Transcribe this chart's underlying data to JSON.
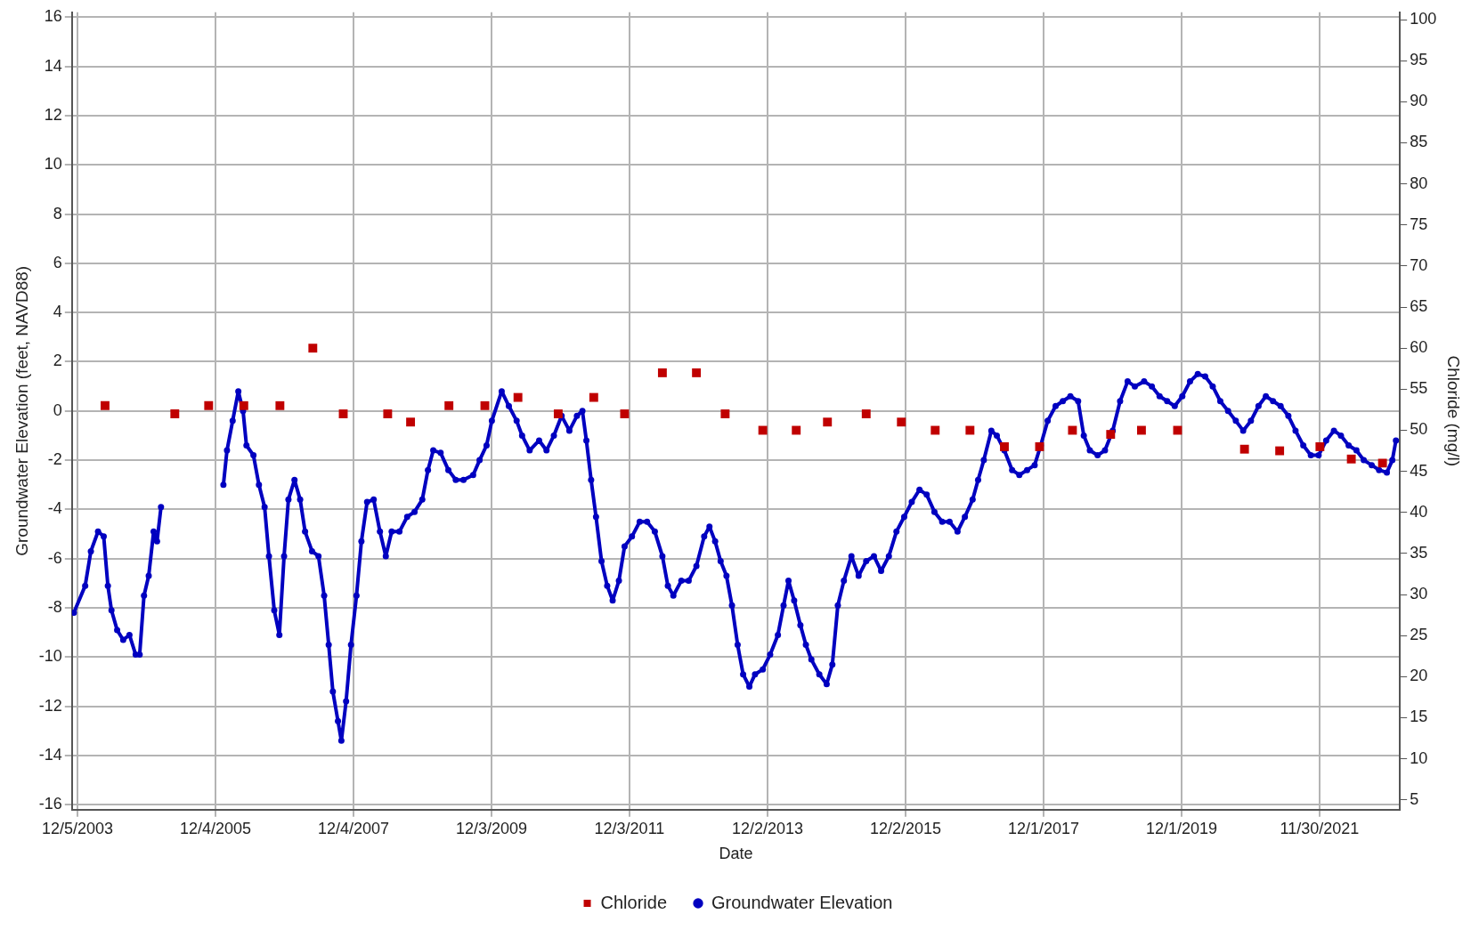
{
  "chart_data": {
    "type": "line",
    "xlabel": "Date",
    "ylabel": "Groundwater Elevation (feet, NAVD88)",
    "y2label": "Chloride (mg/l)",
    "xlim": [
      "2003-11-06",
      "2023-01-29"
    ],
    "xticks": [
      {
        "value": "2003-12-05",
        "label": "12/5/2003"
      },
      {
        "value": "2005-12-04",
        "label": "12/4/2005"
      },
      {
        "value": "2007-12-04",
        "label": "12/4/2007"
      },
      {
        "value": "2009-12-03",
        "label": "12/3/2009"
      },
      {
        "value": "2011-12-03",
        "label": "12/3/2011"
      },
      {
        "value": "2013-12-02",
        "label": "12/2/2013"
      },
      {
        "value": "2015-12-02",
        "label": "12/2/2015"
      },
      {
        "value": "2017-12-01",
        "label": "12/1/2017"
      },
      {
        "value": "2019-12-01",
        "label": "12/1/2019"
      },
      {
        "value": "2021-11-30",
        "label": "11/30/2021"
      }
    ],
    "ylim": [
      -16.2,
      16.2
    ],
    "yticks": [
      -16,
      -14,
      -12,
      -10,
      -8,
      -6,
      -4,
      -2,
      0,
      2,
      4,
      6,
      8,
      10,
      12,
      14,
      16
    ],
    "y2lim": [
      3.8,
      100.9
    ],
    "y2ticks": [
      5,
      10,
      15,
      20,
      25,
      30,
      35,
      40,
      45,
      50,
      55,
      60,
      65,
      70,
      75,
      80,
      85,
      90,
      95,
      100
    ],
    "grid": true,
    "legend": "bottom",
    "series": [
      {
        "name": "Groundwater Elevation",
        "type": "line",
        "marker": "circle",
        "color": "#0000c0",
        "x": [
          "2003-11-16",
          "2004-01-15",
          "2004-02-14",
          "2004-03-23",
          "2004-04-22",
          "2004-05-14",
          "2004-06-02",
          "2004-07-02",
          "2004-08-03",
          "2004-09-05",
          "2004-10-08",
          "2004-10-29",
          "2004-11-21",
          "2004-12-16",
          "2005-01-11",
          "2005-01-29",
          "2005-02-19",
          "2005-08-01",
          "2006-01-15",
          "2006-02-03",
          "2006-03-05",
          "2006-04-04",
          "2006-04-29",
          "2006-05-17",
          "2006-06-23",
          "2006-07-22",
          "2006-08-21",
          "2006-09-13",
          "2006-10-11",
          "2006-11-07",
          "2006-12-02",
          "2006-12-25",
          "2007-01-26",
          "2007-02-25",
          "2007-03-23",
          "2007-04-29",
          "2007-06-02",
          "2007-07-02",
          "2007-07-26",
          "2007-08-17",
          "2007-09-13",
          "2007-10-01",
          "2007-10-26",
          "2007-11-21",
          "2007-12-20",
          "2008-01-15",
          "2008-02-14",
          "2008-03-20",
          "2008-04-22",
          "2008-05-23",
          "2008-06-23",
          "2008-08-03",
          "2008-09-13",
          "2008-10-22",
          "2008-12-02",
          "2009-01-01",
          "2009-01-29",
          "2009-03-09",
          "2009-04-19",
          "2009-05-28",
          "2009-07-08",
          "2009-08-28",
          "2009-10-01",
          "2009-11-07",
          "2009-12-05",
          "2010-01-26",
          "2010-03-05",
          "2010-04-15",
          "2010-05-14",
          "2010-06-23",
          "2010-08-12",
          "2010-09-20",
          "2010-10-29",
          "2010-12-09",
          "2011-01-19",
          "2011-02-28",
          "2011-03-29",
          "2011-04-19",
          "2011-05-14",
          "2011-06-09",
          "2011-07-08",
          "2011-08-07",
          "2011-09-05",
          "2011-10-08",
          "2011-11-07",
          "2011-12-16",
          "2012-01-26",
          "2012-03-05",
          "2012-04-15",
          "2012-05-25",
          "2012-06-23",
          "2012-07-22",
          "2012-09-02",
          "2012-10-11",
          "2012-11-21",
          "2013-01-01",
          "2013-01-29",
          "2013-02-28",
          "2013-03-29",
          "2013-04-29",
          "2013-05-28",
          "2013-06-27",
          "2013-07-26",
          "2013-08-28",
          "2013-09-27",
          "2013-11-07",
          "2013-12-16",
          "2014-01-26",
          "2014-02-25",
          "2014-03-23",
          "2014-04-22",
          "2014-05-25",
          "2014-06-23",
          "2014-07-22",
          "2014-09-02",
          "2014-10-11",
          "2014-11-10",
          "2014-12-09",
          "2015-01-10",
          "2015-02-19",
          "2015-03-29",
          "2015-05-08",
          "2015-06-18",
          "2015-07-26",
          "2015-09-05",
          "2015-10-15",
          "2015-11-25",
          "2016-01-04",
          "2016-02-14",
          "2016-03-23",
          "2016-05-03",
          "2016-06-13",
          "2016-07-22",
          "2016-09-02",
          "2016-10-11",
          "2016-11-21",
          "2016-12-20",
          "2017-01-19",
          "2017-02-28",
          "2017-03-29",
          "2017-05-08",
          "2017-06-18",
          "2017-07-26",
          "2017-09-05",
          "2017-10-15",
          "2017-11-16",
          "2017-12-23",
          "2018-02-03",
          "2018-03-13",
          "2018-04-22",
          "2018-06-02",
          "2018-07-02",
          "2018-08-03",
          "2018-09-13",
          "2018-10-22",
          "2018-12-02",
          "2019-01-10",
          "2019-02-19",
          "2019-03-29",
          "2019-05-17",
          "2019-06-27",
          "2019-08-07",
          "2019-09-16",
          "2019-10-26",
          "2019-12-05",
          "2020-01-15",
          "2020-02-25",
          "2020-04-04",
          "2020-05-14",
          "2020-06-23",
          "2020-08-03",
          "2020-09-13",
          "2020-10-22",
          "2020-12-02",
          "2021-01-11",
          "2021-02-19",
          "2021-03-29",
          "2021-05-08",
          "2021-06-18",
          "2021-07-26",
          "2021-09-05",
          "2021-10-15",
          "2021-11-25",
          "2022-01-04",
          "2022-02-14",
          "2022-03-23",
          "2022-05-03",
          "2022-06-13",
          "2022-07-22",
          "2022-09-02",
          "2022-10-11",
          "2022-11-21",
          "2022-12-20",
          "2023-01-08"
        ],
        "values": [
          -8.2,
          -7.1,
          -5.7,
          -4.9,
          -5.1,
          -7.1,
          -8.1,
          -8.9,
          -9.3,
          -9.1,
          -9.9,
          -9.9,
          -7.5,
          -6.7,
          -4.9,
          -5.3,
          -3.9,
          null,
          -3.0,
          -1.6,
          -0.4,
          0.8,
          0,
          -1.4,
          -1.8,
          -3.0,
          -3.9,
          -5.9,
          -8.1,
          -9.1,
          -5.9,
          -3.6,
          -2.8,
          -3.6,
          -4.9,
          -5.7,
          -5.9,
          -7.5,
          -9.5,
          -11.4,
          -12.6,
          -13.4,
          -11.8,
          -9.5,
          -7.5,
          -5.3,
          -3.7,
          -3.6,
          -4.9,
          -5.9,
          -4.9,
          -4.9,
          -4.3,
          -4.1,
          -3.6,
          -2.4,
          -1.6,
          -1.7,
          -2.4,
          -2.8,
          -2.8,
          -2.6,
          -2.0,
          -1.4,
          -0.4,
          0.8,
          0.2,
          -0.4,
          -1.0,
          -1.6,
          -1.2,
          -1.6,
          -1.0,
          -0.2,
          -0.8,
          -0.2,
          0,
          -1.2,
          -2.8,
          -4.3,
          -6.1,
          -7.1,
          -7.7,
          -6.9,
          -5.5,
          -5.1,
          -4.5,
          -4.5,
          -4.9,
          -5.9,
          -7.1,
          -7.5,
          -6.9,
          -6.9,
          -6.3,
          -5.1,
          -4.7,
          -5.3,
          -6.1,
          -6.7,
          -7.9,
          -9.5,
          -10.7,
          -11.2,
          -10.7,
          -10.5,
          -9.9,
          -9.1,
          -7.9,
          -6.9,
          -7.7,
          -8.7,
          -9.5,
          -10.1,
          -10.7,
          -11.1,
          -10.3,
          -7.9,
          -6.9,
          -5.9,
          -6.7,
          -6.1,
          -5.9,
          -6.5,
          -5.9,
          -4.9,
          -4.3,
          -3.7,
          -3.2,
          -3.4,
          -4.1,
          -4.5,
          -4.5,
          -4.9,
          -4.3,
          -3.6,
          -2.8,
          -2.0,
          -0.8,
          -1.0,
          -1.6,
          -2.4,
          -2.6,
          -2.4,
          -2.2,
          -1.4,
          -0.4,
          0.2,
          0.4,
          0.6,
          0.4,
          -1.0,
          -1.6,
          -1.8,
          -1.6,
          -0.8,
          0.4,
          1.2,
          1.0,
          1.2,
          1.0,
          0.6,
          0.4,
          0.2,
          0.6,
          1.2,
          1.5,
          1.4,
          1.0,
          0.4,
          0,
          -0.4,
          -0.8,
          -0.4,
          0.2,
          0.6,
          0.4,
          0.2,
          -0.2,
          -0.8,
          -1.4,
          -1.8,
          -1.8,
          -1.2,
          -0.8,
          -1.0,
          -1.4,
          -1.6,
          -2.0,
          -2.2,
          -2.4,
          -2.5,
          -2.0,
          -1.2
        ]
      },
      {
        "name": "Chloride",
        "type": "scatter",
        "marker": "square",
        "axis": "y2",
        "color": "#c00000",
        "x": [
          "2004-04-29",
          "2005-05-03",
          "2005-10-29",
          "2006-05-03",
          "2006-11-10",
          "2007-05-03",
          "2007-10-11",
          "2008-06-02",
          "2008-10-01",
          "2009-04-22",
          "2009-10-29",
          "2010-04-22",
          "2010-11-21",
          "2011-05-28",
          "2011-11-07",
          "2012-05-25",
          "2012-11-21",
          "2013-04-22",
          "2013-11-07",
          "2014-05-03",
          "2014-10-15",
          "2015-05-08",
          "2015-11-10",
          "2016-05-07",
          "2016-11-07",
          "2017-05-08",
          "2017-11-10",
          "2018-05-03",
          "2018-11-21",
          "2019-05-03",
          "2019-11-10",
          "2020-10-29",
          "2021-05-03",
          "2021-12-02",
          "2022-05-17",
          "2022-10-29"
        ],
        "values": [
          53,
          52,
          53,
          53,
          53,
          60,
          52,
          52,
          51,
          53,
          53,
          54,
          52,
          54,
          52,
          57,
          57,
          52,
          50,
          50,
          51,
          52,
          51,
          50,
          50,
          48,
          48,
          50,
          49.5,
          50,
          50,
          47.7,
          47.5,
          48,
          46.5,
          46
        ]
      }
    ]
  }
}
